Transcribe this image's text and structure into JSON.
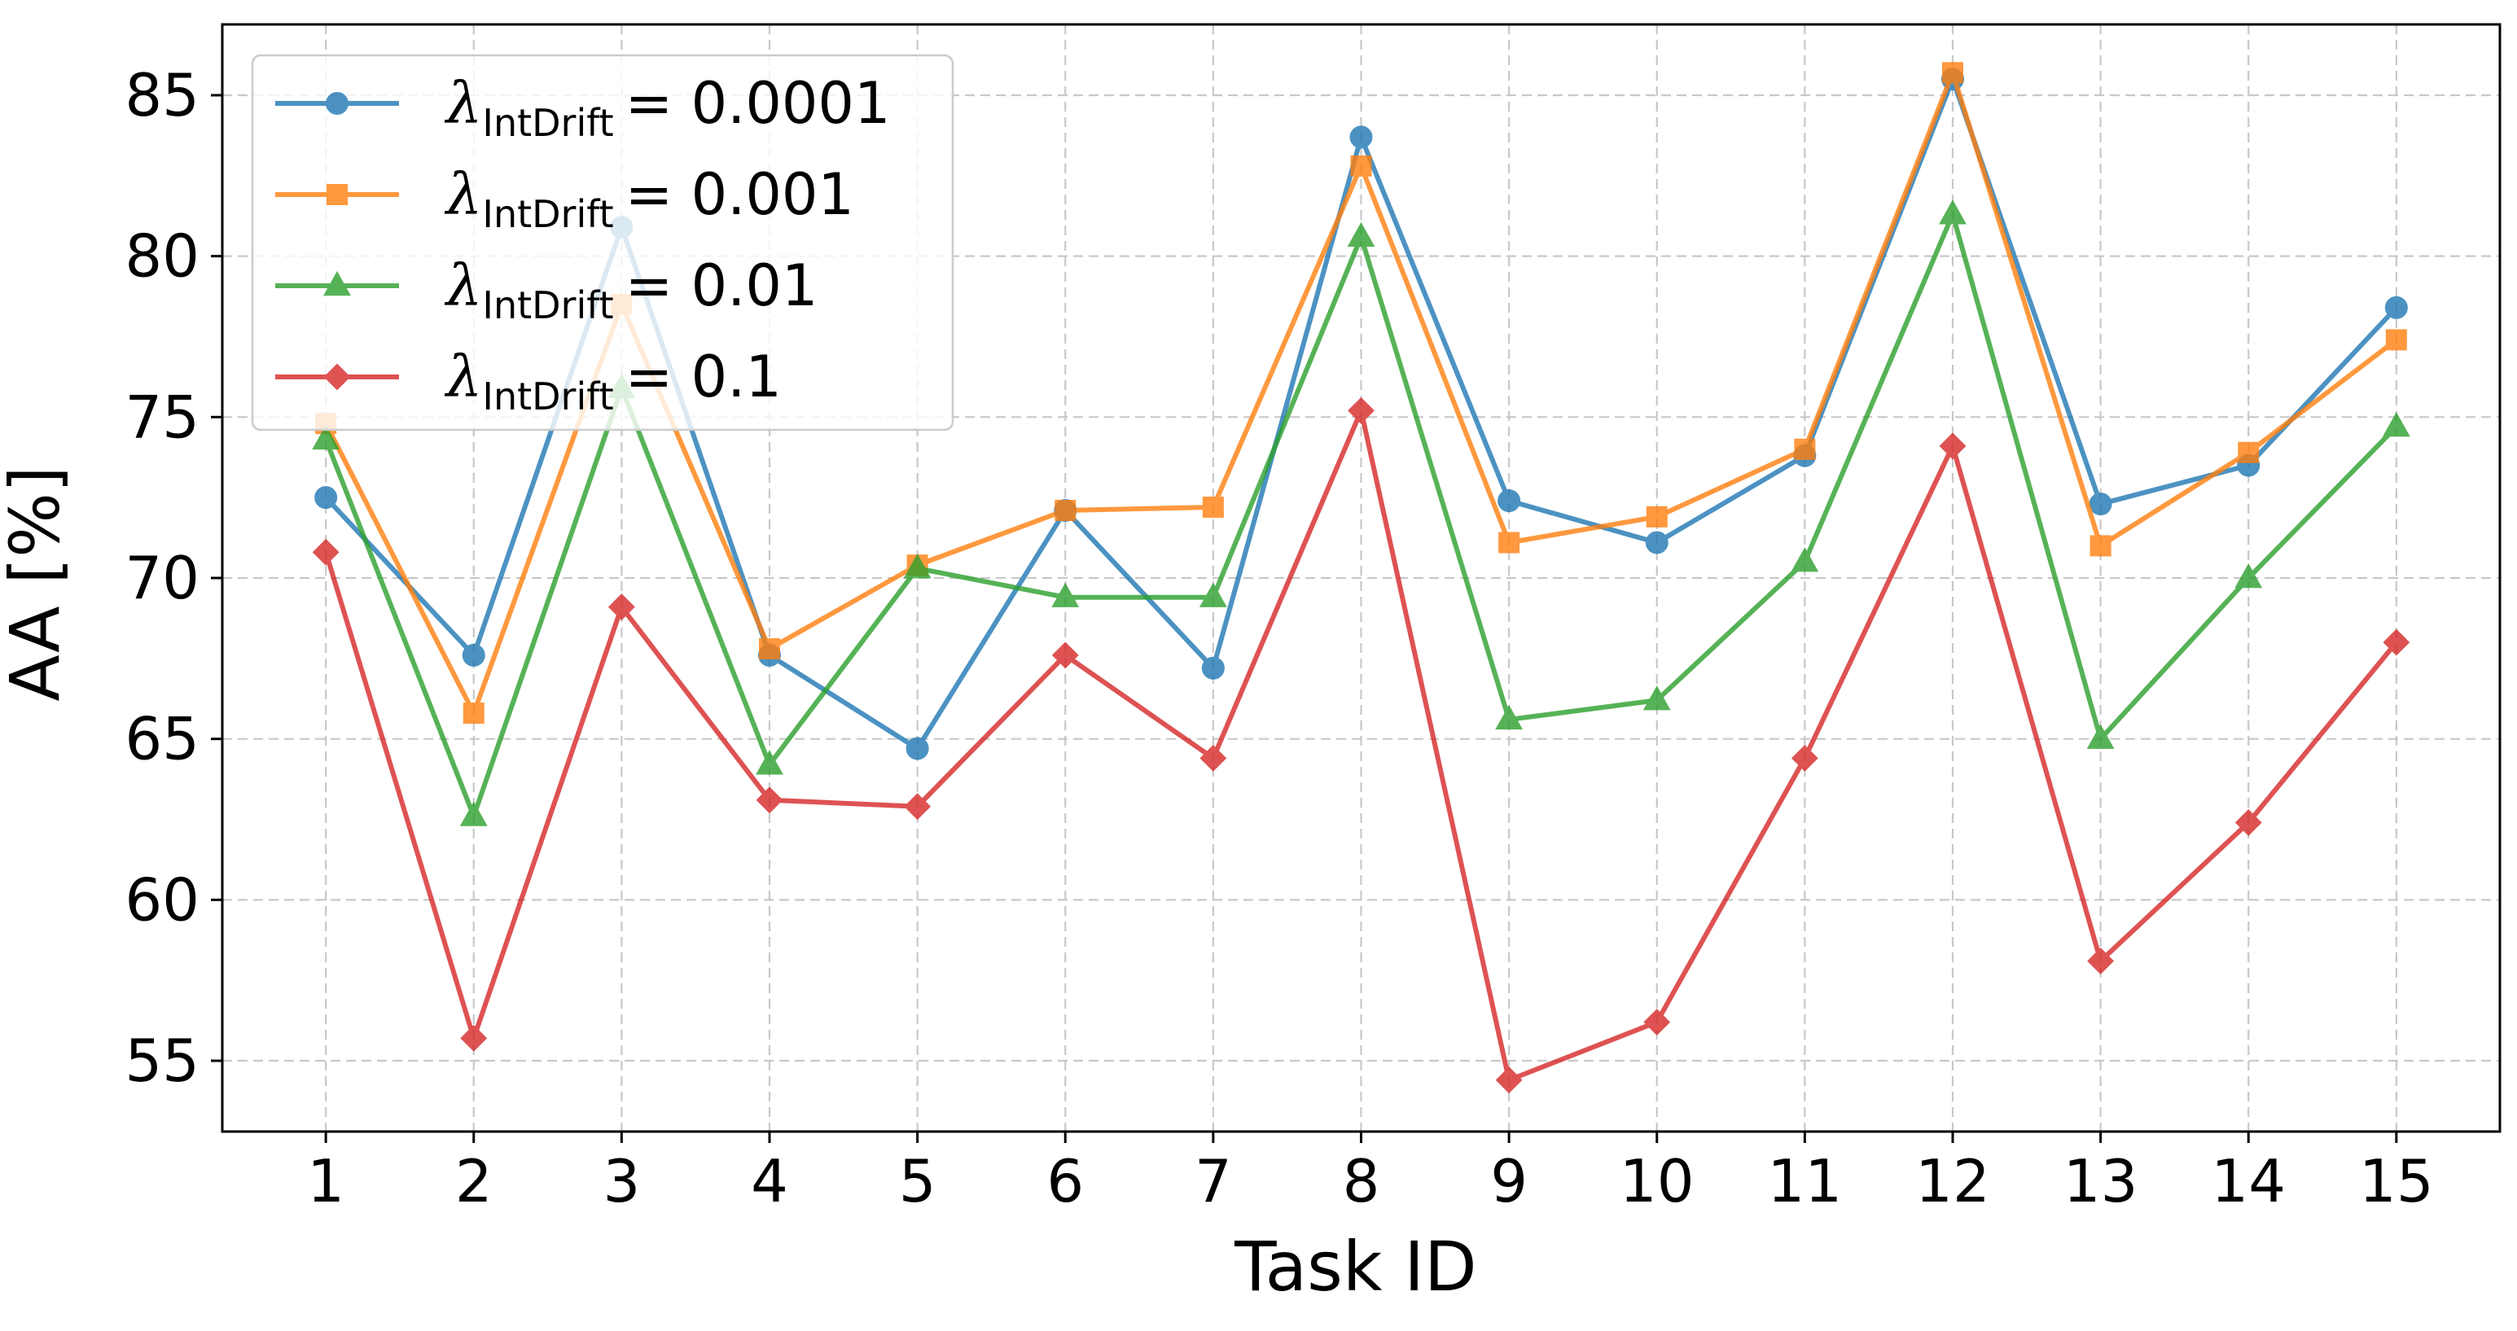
{
  "chart_data": {
    "type": "line",
    "xlabel": "Task ID",
    "ylabel": "AA [%]",
    "x": [
      1,
      2,
      3,
      4,
      5,
      6,
      7,
      8,
      9,
      10,
      11,
      12,
      13,
      14,
      15
    ],
    "xlim": [
      0.3,
      15.7
    ],
    "ylim": [
      52.8,
      87.2
    ],
    "yticks": [
      55,
      60,
      65,
      70,
      75,
      80,
      85
    ],
    "grid": true,
    "legend_position": "top-left",
    "series": [
      {
        "name": "λIntDrift = 0.0001",
        "legend": {
          "symbol": "λ",
          "subscript": "IntDrift",
          "value": "= 0.0001"
        },
        "color": "#1f77b4",
        "marker": "circle",
        "values": [
          72.5,
          67.6,
          80.9,
          67.6,
          64.7,
          72.1,
          67.2,
          83.7,
          72.4,
          71.1,
          73.8,
          85.5,
          72.3,
          73.5,
          78.4
        ]
      },
      {
        "name": "λIntDrift = 0.001",
        "legend": {
          "symbol": "λ",
          "subscript": "IntDrift",
          "value": "= 0.001"
        },
        "color": "#ff7f0e",
        "marker": "square",
        "values": [
          74.8,
          65.8,
          78.5,
          67.8,
          70.4,
          72.1,
          72.2,
          82.8,
          71.1,
          71.9,
          74.0,
          85.7,
          71.0,
          73.9,
          77.4
        ]
      },
      {
        "name": "λIntDrift = 0.01",
        "legend": {
          "symbol": "λ",
          "subscript": "IntDrift",
          "value": "= 0.01"
        },
        "color": "#2ca02c",
        "marker": "triangle",
        "values": [
          74.3,
          62.6,
          75.9,
          64.2,
          70.3,
          69.4,
          69.4,
          80.6,
          65.6,
          66.2,
          70.5,
          81.3,
          65.0,
          70.0,
          74.7
        ]
      },
      {
        "name": "λIntDrift = 0.1",
        "legend": {
          "symbol": "λ",
          "subscript": "IntDrift",
          "value": "= 0.1"
        },
        "color": "#d62728",
        "marker": "diamond",
        "values": [
          70.8,
          55.7,
          69.1,
          63.1,
          62.9,
          67.6,
          64.4,
          75.2,
          54.4,
          56.2,
          64.4,
          74.1,
          58.1,
          62.4,
          68.0
        ]
      }
    ]
  }
}
